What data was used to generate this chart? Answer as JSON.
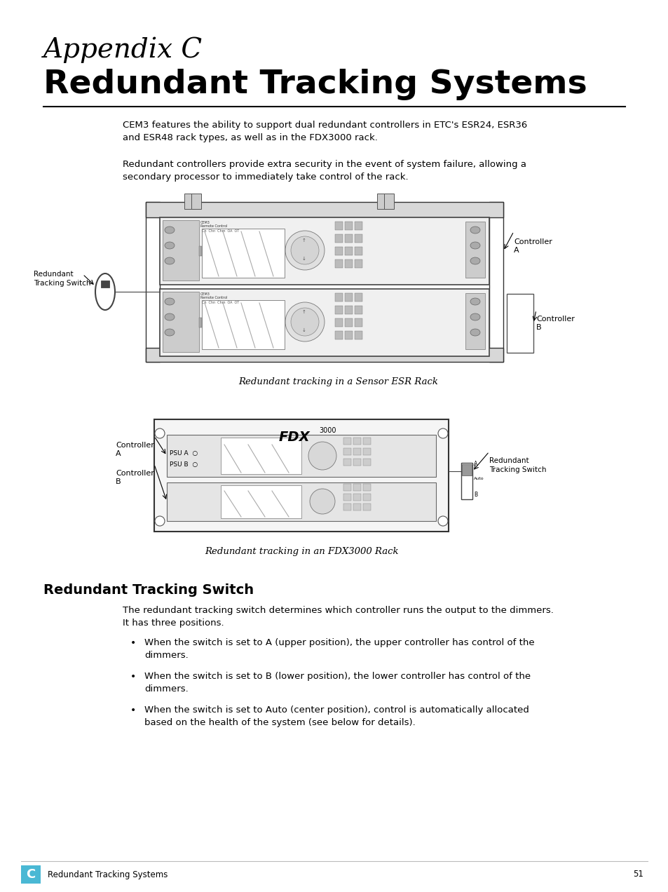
{
  "page_bg": "#ffffff",
  "title_italic": "Appendix C",
  "title_main": "Redundant Tracking Systems",
  "body_text_1": "CEM3 features the ability to support dual redundant controllers in ETC's ESR24, ESR36\nand ESR48 rack types, as well as in the FDX3000 rack.",
  "body_text_2": "Redundant controllers provide extra security in the event of system failure, allowing a\nsecondary processor to immediately take control of the rack.",
  "fig1_caption": "Redundant tracking in a Sensor ESR Rack",
  "fig2_caption": "Redundant tracking in an FDX3000 Rack",
  "section_title": "Redundant Tracking Switch",
  "section_body": "The redundant tracking switch determines which controller runs the output to the dimmers.\nIt has three positions.",
  "bullet1": "When the switch is set to A (upper position), the upper controller has control of the\ndimmers.",
  "bullet2": "When the switch is set to B (lower position), the lower controller has control of the\ndimmers.",
  "bullet3": "When the switch is set to Auto (center position), control is automatically allocated\nbased on the health of the system (see below for details).",
  "footer_box_color": "#4ab8d4",
  "footer_text": "Redundant Tracking Systems",
  "footer_page": "51",
  "footer_letter": "C"
}
